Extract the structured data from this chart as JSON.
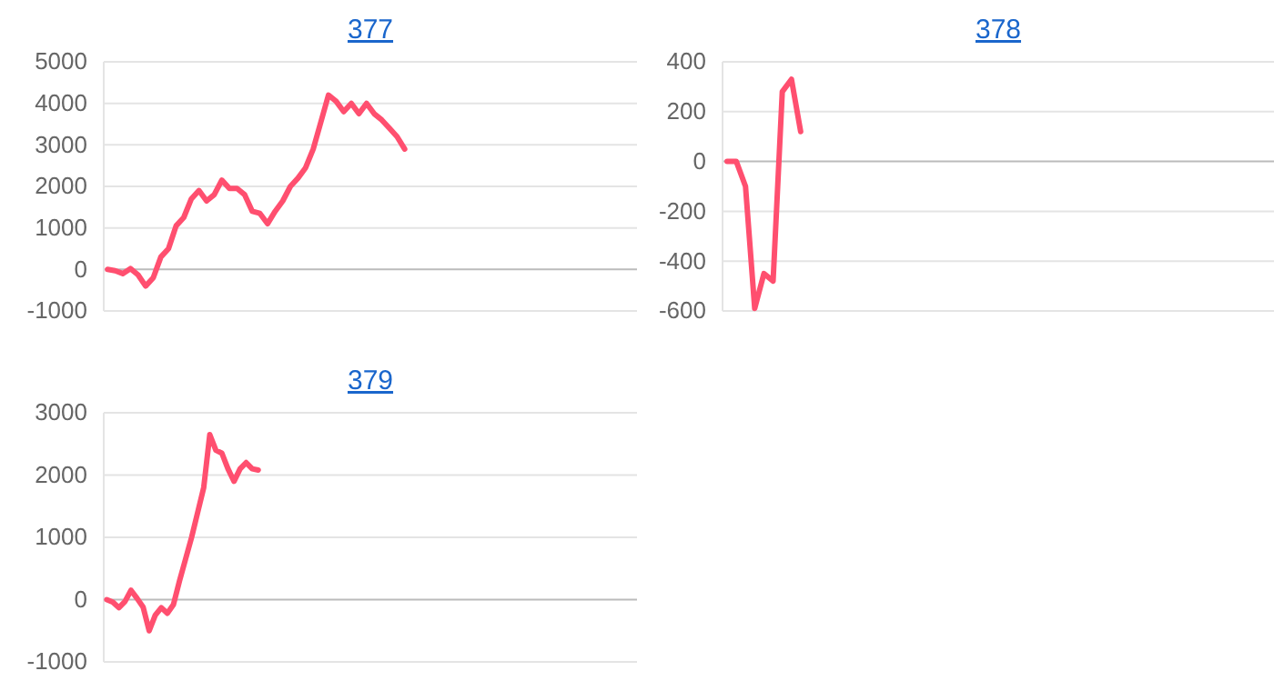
{
  "chart_data": [
    {
      "type": "line",
      "title": "377",
      "tick_labels": "y",
      "grid": "y",
      "line_style": "solid",
      "marker": "none",
      "categories": [
        null,
        null,
        null,
        null,
        null,
        null,
        null,
        null,
        null,
        null,
        null,
        null,
        null,
        null,
        null,
        null,
        null,
        null,
        null,
        null,
        null,
        null,
        null,
        null,
        null,
        null,
        null,
        null,
        null,
        null,
        null,
        null,
        null,
        null,
        null,
        null,
        null,
        null,
        null,
        null,
        null,
        null,
        null,
        null,
        null,
        null,
        null,
        null,
        null,
        null,
        null,
        null,
        null,
        null,
        null,
        null,
        null,
        null,
        null,
        null,
        null,
        null,
        null,
        null,
        null,
        null,
        null,
        null,
        null,
        null
      ],
      "series": [
        {
          "color": "#ff4f6f",
          "values": [
            0,
            -30,
            -100,
            20,
            -130,
            -400,
            -200,
            300,
            500,
            1050,
            1250,
            1700,
            1900,
            1650,
            1800,
            2150,
            1950,
            1950,
            1800,
            1400,
            1350,
            1100,
            1400,
            1650,
            2000,
            2200,
            2450,
            2900,
            3550,
            4200,
            4050,
            3800,
            4000,
            3750,
            4000,
            3750,
            3600,
            3400,
            3200,
            2900,
            null,
            null,
            null,
            null,
            null,
            null,
            null,
            null,
            null,
            null,
            null,
            null,
            null,
            null,
            null,
            null,
            null,
            null,
            null,
            null,
            null,
            null,
            null,
            null,
            null,
            null,
            null,
            null,
            null,
            null
          ]
        }
      ],
      "ylim": [
        -1000,
        5000
      ],
      "yticks": [
        -1000,
        0,
        1000,
        2000,
        3000,
        4000,
        5000
      ]
    },
    {
      "type": "line",
      "title": "378",
      "tick_labels": "y",
      "grid": "y",
      "line_style": "solid",
      "marker": "none",
      "categories": [
        null,
        null,
        null,
        null,
        null,
        null,
        null,
        null,
        null,
        null,
        null,
        null,
        null,
        null,
        null,
        null,
        null,
        null,
        null,
        null,
        null,
        null,
        null,
        null,
        null,
        null,
        null,
        null,
        null,
        null,
        null,
        null,
        null,
        null,
        null,
        null,
        null,
        null,
        null,
        null,
        null,
        null,
        null,
        null,
        null,
        null,
        null,
        null,
        null,
        null,
        null,
        null,
        null,
        null,
        null,
        null,
        null,
        null,
        null,
        null
      ],
      "series": [
        {
          "color": "#ff4f6f",
          "values": [
            0,
            0,
            -100,
            -590,
            -450,
            -480,
            280,
            330,
            120,
            null,
            null,
            null,
            null,
            null,
            null,
            null,
            null,
            null,
            null,
            null,
            null,
            null,
            null,
            null,
            null,
            null,
            null,
            null,
            null,
            null,
            null,
            null,
            null,
            null,
            null,
            null,
            null,
            null,
            null,
            null,
            null,
            null,
            null,
            null,
            null,
            null,
            null,
            null,
            null,
            null,
            null,
            null,
            null,
            null,
            null,
            null,
            null,
            null,
            null,
            null
          ]
        }
      ],
      "ylim": [
        -600,
        400
      ],
      "yticks": [
        -600,
        -400,
        -200,
        0,
        200,
        400
      ]
    },
    {
      "type": "line",
      "title": "379",
      "tick_labels": "y",
      "grid": "y",
      "line_style": "solid",
      "marker": "none",
      "categories": [
        null,
        null,
        null,
        null,
        null,
        null,
        null,
        null,
        null,
        null,
        null,
        null,
        null,
        null,
        null,
        null,
        null,
        null,
        null,
        null,
        null,
        null,
        null,
        null,
        null,
        null,
        null,
        null,
        null,
        null,
        null,
        null,
        null,
        null,
        null,
        null,
        null,
        null,
        null,
        null,
        null,
        null,
        null,
        null,
        null,
        null,
        null,
        null,
        null,
        null,
        null,
        null,
        null,
        null,
        null,
        null,
        null,
        null,
        null,
        null,
        null,
        null,
        null,
        null,
        null,
        null,
        null,
        null,
        null,
        null,
        null,
        null,
        null,
        null,
        null,
        null,
        null,
        null,
        null,
        null,
        null,
        null,
        null,
        null,
        null,
        null,
        null,
        null
      ],
      "series": [
        {
          "color": "#ff4f6f",
          "values": [
            0,
            -40,
            -130,
            -30,
            150,
            20,
            -120,
            -500,
            -250,
            -130,
            -220,
            -80,
            300,
            650,
            1000,
            1400,
            1800,
            2650,
            2400,
            2350,
            2100,
            1900,
            2100,
            2200,
            2100,
            2080,
            null,
            null,
            null,
            null,
            null,
            null,
            null,
            null,
            null,
            null,
            null,
            null,
            null,
            null,
            null,
            null,
            null,
            null,
            null,
            null,
            null,
            null,
            null,
            null,
            null,
            null,
            null,
            null,
            null,
            null,
            null,
            null,
            null,
            null,
            null,
            null,
            null,
            null,
            null,
            null,
            null,
            null,
            null,
            null,
            null,
            null,
            null,
            null,
            null,
            null,
            null,
            null,
            null,
            null,
            null,
            null,
            null,
            null,
            null,
            null,
            null,
            null
          ]
        }
      ],
      "ylim": [
        -1000,
        3000
      ],
      "yticks": [
        -1000,
        0,
        1000,
        2000,
        3000
      ]
    }
  ]
}
